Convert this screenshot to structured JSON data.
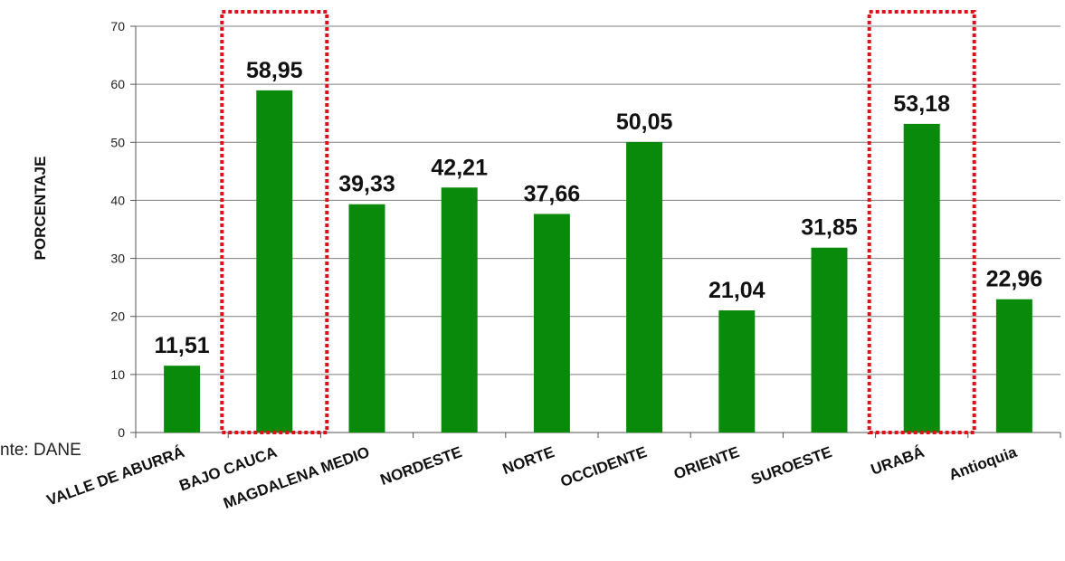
{
  "chart_data": {
    "type": "bar",
    "title": "",
    "ylabel": "PORCENTAJE",
    "xlabel": "",
    "categories": [
      "VALLE DE ABURRÁ",
      "BAJO CAUCA",
      "MAGDALENA MEDIO",
      "NORDESTE",
      "NORTE",
      "OCCIDENTE",
      "ORIENTE",
      "SUROESTE",
      "URABÁ",
      "Antioquia"
    ],
    "values": [
      11.51,
      58.95,
      39.33,
      42.21,
      37.66,
      50.05,
      21.04,
      31.85,
      53.18,
      22.96
    ],
    "value_labels": [
      "11,51",
      "58,95",
      "39,33",
      "42,21",
      "37,66",
      "50,05",
      "21,04",
      "31,85",
      "53,18",
      "22,96"
    ],
    "ylim": [
      0,
      70
    ],
    "yticks": [
      0,
      10,
      20,
      30,
      40,
      50,
      60,
      70
    ],
    "grid": true,
    "bar_color": "#0a8a0a",
    "highlighted_categories": [
      "BAJO CAUCA",
      "URABÁ"
    ],
    "highlight_color": "#e0101a"
  },
  "source_text": "nte: DANE"
}
